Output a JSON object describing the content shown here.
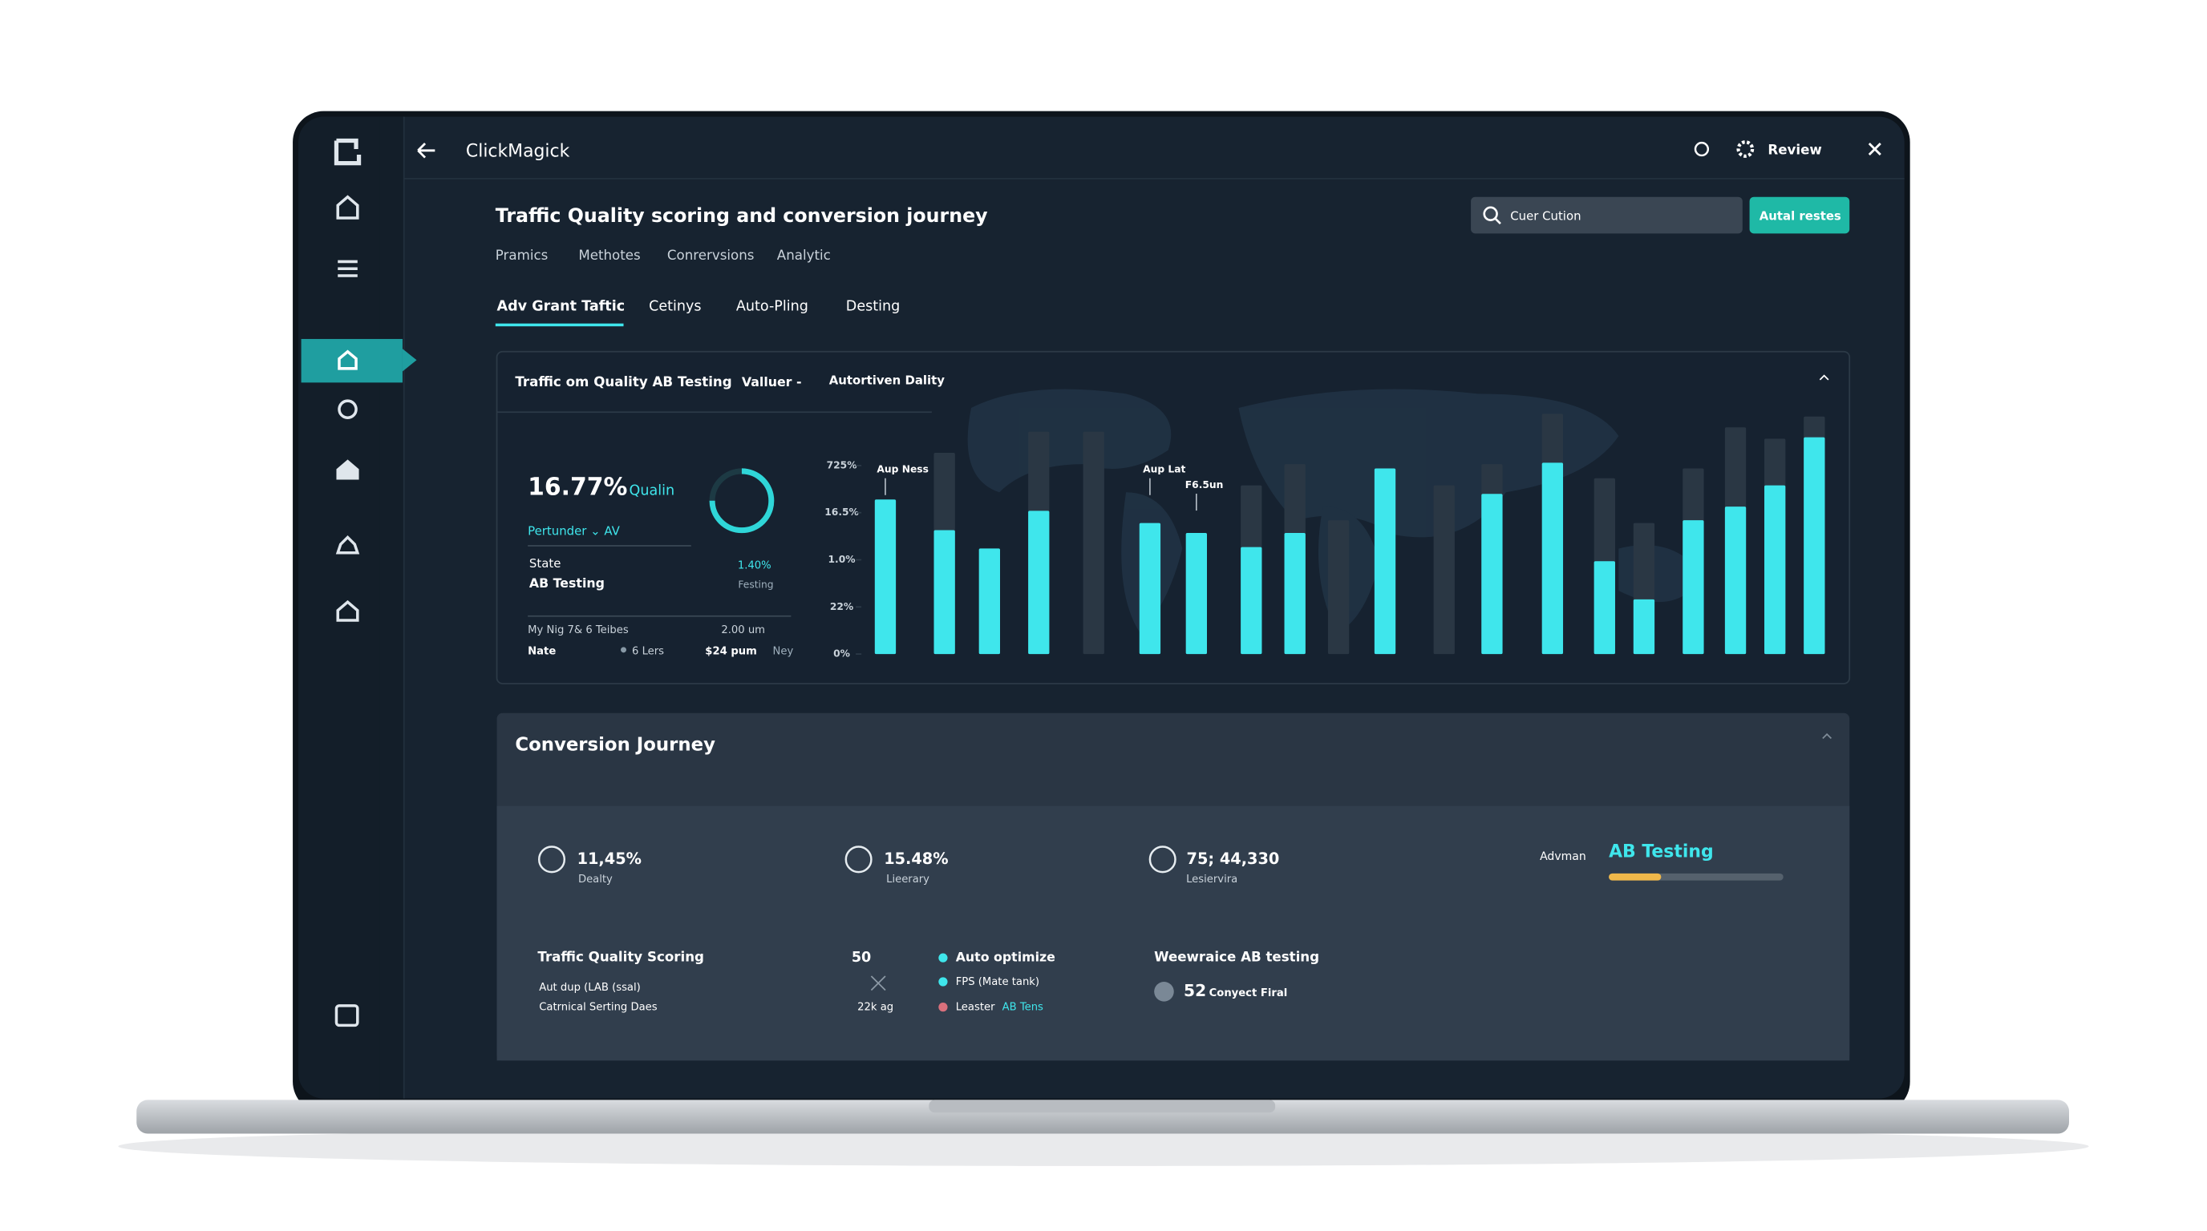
{
  "app": {
    "name": "ClickMagick",
    "review": "Review"
  },
  "header": {
    "title": "Traffic Quality scoring and conversion journey",
    "search": "Cuer Cution",
    "button": "Autal restes",
    "subnav": [
      "Pramics",
      "Methotes",
      "Conrervsions",
      "Analytic"
    ],
    "tabs": [
      "Adv Grant Taftic",
      "Cetinys",
      "Auto-Pling",
      "Desting"
    ]
  },
  "panel1": {
    "title": "Traffic om Quality AB Testing",
    "filter": "Valluer -",
    "filter2": "Autortiven Dality",
    "kpi": "16.77%",
    "kpi_label": "Qualin",
    "selector": "Pertunder ⌄ AV",
    "state": "State",
    "state_value": "AB Testing",
    "rate": "1.40%",
    "rate_label": "Festing",
    "row1": "My Nig 7& 6 Teibes",
    "row1_value": "2.00 um",
    "row2": [
      "Nate",
      "6 Lers",
      "$24 pum",
      "Ney"
    ]
  },
  "chart": {
    "type": "bar",
    "yticks": [
      {
        "value": 0,
        "label": "0%"
      },
      {
        "value": 1,
        "label": "22%"
      },
      {
        "value": 2,
        "label": "1.0%"
      },
      {
        "value": 3,
        "label": "16.5%"
      },
      {
        "value": 4,
        "label": "725%"
      }
    ],
    "ylim": [
      0,
      5.2
    ],
    "values": [
      3.28,
      2.63,
      2.24,
      3.04,
      null,
      2.78,
      2.57,
      2.27,
      2.57,
      null,
      3.94,
      null,
      3.4,
      4.06,
      1.97,
      1.16,
      2.84,
      3.13,
      3.58,
      4.6
    ],
    "background_values": [
      null,
      4.27,
      null,
      4.72,
      4.72,
      null,
      null,
      3.58,
      4.03,
      2.84,
      null,
      3.58,
      4.03,
      5.1,
      3.73,
      2.78,
      3.94,
      4.81,
      4.57,
      5.04
    ],
    "color": "#3fe6ec",
    "background_color": "#2a3744",
    "annotations": [
      "Aup Ness",
      "Aup Lat",
      "F6.5un"
    ]
  },
  "panel2": {
    "title": "Conversion Journey",
    "metrics": [
      {
        "value": "11,45%",
        "label": "Dealty"
      },
      {
        "value": "15.48%",
        "label": "Lieerary"
      },
      {
        "value": "75; 44,330",
        "label": "Lesiervira"
      }
    ],
    "ab_label": "Advman",
    "ab_title": "AB Testing",
    "progress": 30,
    "scoring_title": "Traffic Quality Scoring",
    "scoring_lines": [
      "Aut dup (LAB (ssal)",
      "Catrnical Serting Daes"
    ],
    "score": "50",
    "score_sub": "22k ag",
    "legend": [
      "Auto optimize",
      "FPS (Mate tank)",
      "Leaster"
    ],
    "legend_highlight": "AB Tens",
    "ab2_title": "Weewraice AB testing",
    "ab2_value": "52",
    "ab2_label": "Conyect Firal"
  }
}
